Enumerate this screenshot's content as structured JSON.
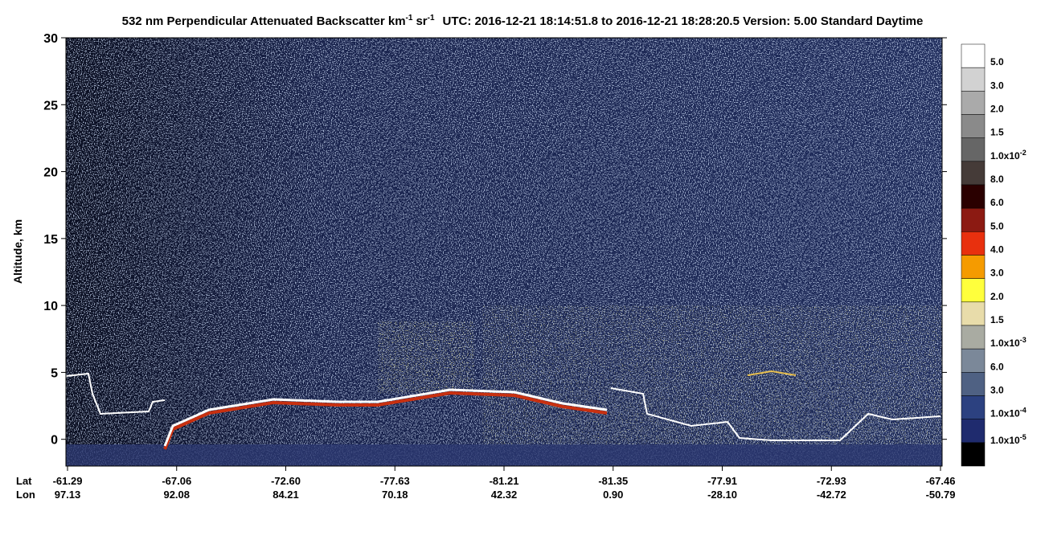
{
  "chart_data": {
    "type": "curtain",
    "title": {
      "text1": "532 nm Perpendicular Attenuated Backscatter km",
      "sup1": "-1",
      "text2": "sr",
      "sup2": "-1",
      "text3": "UTC: 2016-12-21 18:14:51.8 to 2016-12-21 18:28:20.5  Version: 5.00 Standard Daytime"
    },
    "y_label": "Altitude, km",
    "ylim": [
      -2,
      30
    ],
    "yticks": [
      0,
      5,
      10,
      15,
      20,
      25,
      30
    ],
    "x_rows": [
      {
        "name": "Lat",
        "labels": [
          "-61.29",
          "-67.06",
          "-72.60",
          "-77.63",
          "-81.21",
          "-81.35",
          "-77.91",
          "-72.93",
          "-67.46"
        ]
      },
      {
        "name": "Lon",
        "labels": [
          "97.13",
          "92.08",
          "84.21",
          "70.18",
          "42.32",
          "0.90",
          "-28.10",
          "-42.72",
          "-50.79"
        ]
      }
    ],
    "colorbar": {
      "colors": [
        "#ffffff",
        "#d2d2d2",
        "#aaaaaa",
        "#8a8a8a",
        "#666666",
        "#453b38",
        "#2a0000",
        "#8c1a12",
        "#e8300e",
        "#f59b00",
        "#ffff3c",
        "#e8dcaa",
        "#a9aba2",
        "#7b8899",
        "#4f6183",
        "#2c4180",
        "#1f2b6e",
        "#000000"
      ],
      "labels": [
        {
          "text": "5.0"
        },
        {
          "text": "3.0"
        },
        {
          "text": "2.0"
        },
        {
          "text": "1.5"
        },
        {
          "text": "1.0x10",
          "exp": "-2"
        },
        {
          "text": "8.0"
        },
        {
          "text": "6.0"
        },
        {
          "text": "5.0"
        },
        {
          "text": "4.0"
        },
        {
          "text": "3.0"
        },
        {
          "text": "2.0"
        },
        {
          "text": "1.5"
        },
        {
          "text": "1.0x10",
          "exp": "-3"
        },
        {
          "text": "6.0"
        },
        {
          "text": "3.0"
        },
        {
          "text": "1.0x10",
          "exp": "-4"
        },
        {
          "text": "1.0x10",
          "exp": "-5"
        }
      ]
    }
  }
}
